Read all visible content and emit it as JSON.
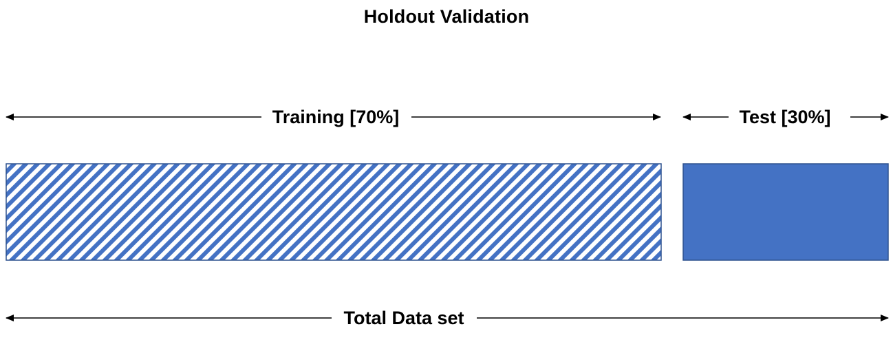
{
  "title": "Holdout Validation",
  "colors": {
    "partition_blue": "#4472c4",
    "partition_border": "#2f528f",
    "arrow": "#000000"
  },
  "segments": {
    "training": {
      "label": "Training [70%]",
      "share_percent": 70,
      "fill": "diagonal-hatch"
    },
    "test": {
      "label": "Test [30%]",
      "share_percent": 30,
      "fill": "solid"
    }
  },
  "total": {
    "label": "Total Data set"
  }
}
